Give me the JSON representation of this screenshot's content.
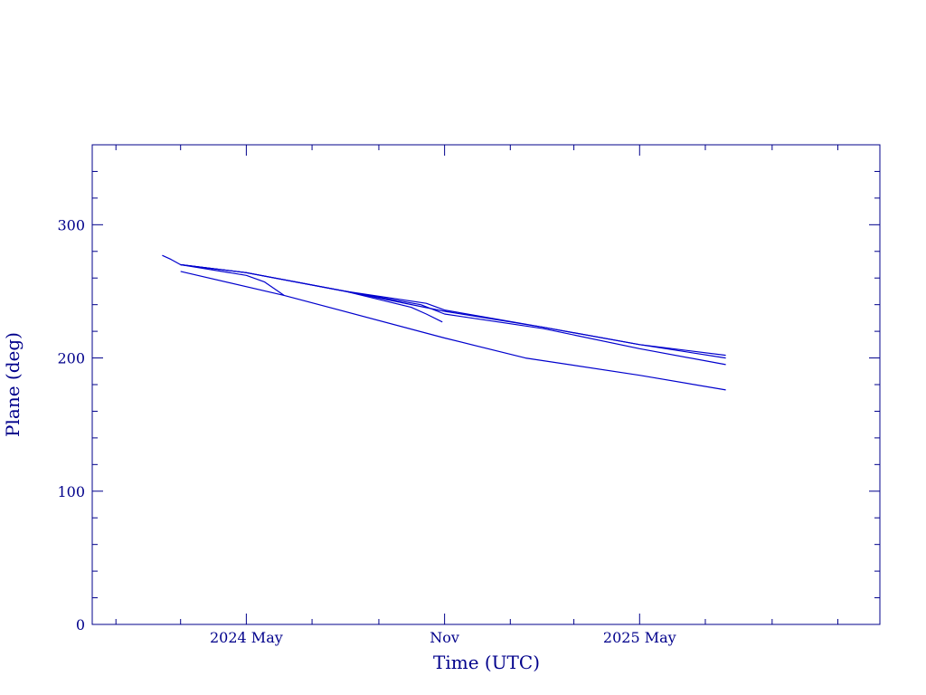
{
  "chart_data": {
    "type": "line",
    "xlabel": "Time (UTC)",
    "ylabel": "Plane (deg)",
    "xlim": [
      "2023-12-10",
      "2025-12-10"
    ],
    "ylim": [
      0,
      360
    ],
    "x_major_ticks": [
      {
        "date": "2024-05-01",
        "label": "2024 May"
      },
      {
        "date": "2024-11-01",
        "label": "Nov"
      },
      {
        "date": "2025-05-01",
        "label": "2025 May"
      }
    ],
    "x_minor_ticks": [
      "2024-01-01",
      "2024-03-01",
      "2024-07-01",
      "2024-09-01",
      "2025-01-01",
      "2025-03-01",
      "2025-07-01",
      "2025-09-01",
      "2025-11-01"
    ],
    "y_major_ticks": [
      {
        "value": 0,
        "label": "0"
      },
      {
        "value": 100,
        "label": "100"
      },
      {
        "value": 200,
        "label": "200"
      },
      {
        "value": 300,
        "label": "300"
      }
    ],
    "y_minor_step": 20,
    "grid": false,
    "line_color": "#0000cd",
    "frame_color": "#00008b",
    "series": [
      {
        "x": [
          "2024-02-13",
          "2024-02-21",
          "2024-03-01",
          "2024-05-01",
          "2024-08-01",
          "2024-11-01",
          "2025-02-01",
          "2025-05-01",
          "2025-07-20"
        ],
        "y": [
          277,
          274,
          270,
          264,
          250,
          235,
          223,
          210,
          202
        ]
      },
      {
        "x": [
          "2024-03-01",
          "2024-05-01",
          "2024-08-01",
          "2024-10-15",
          "2024-11-01",
          "2025-02-01",
          "2025-05-01",
          "2025-07-20"
        ],
        "y": [
          270,
          264,
          250,
          241,
          236,
          223,
          210,
          200
        ]
      },
      {
        "x": [
          "2024-03-01",
          "2024-05-01",
          "2024-08-01",
          "2024-10-10",
          "2024-11-01",
          "2025-02-01",
          "2025-05-01",
          "2025-07-20"
        ],
        "y": [
          270,
          264,
          250,
          240,
          233,
          222,
          207,
          195
        ]
      },
      {
        "x": [
          "2024-03-01",
          "2024-05-01",
          "2024-05-18",
          "2024-06-05"
        ],
        "y": [
          270,
          262,
          257,
          247
        ]
      },
      {
        "x": [
          "2024-08-01",
          "2024-10-01",
          "2024-10-15",
          "2024-10-30"
        ],
        "y": [
          250,
          238,
          233,
          227
        ]
      },
      {
        "x": [
          "2024-03-01",
          "2024-06-05",
          "2024-11-01",
          "2025-01-15",
          "2025-05-01",
          "2025-07-20"
        ],
        "y": [
          265,
          247,
          215,
          200,
          187,
          176
        ]
      }
    ]
  }
}
